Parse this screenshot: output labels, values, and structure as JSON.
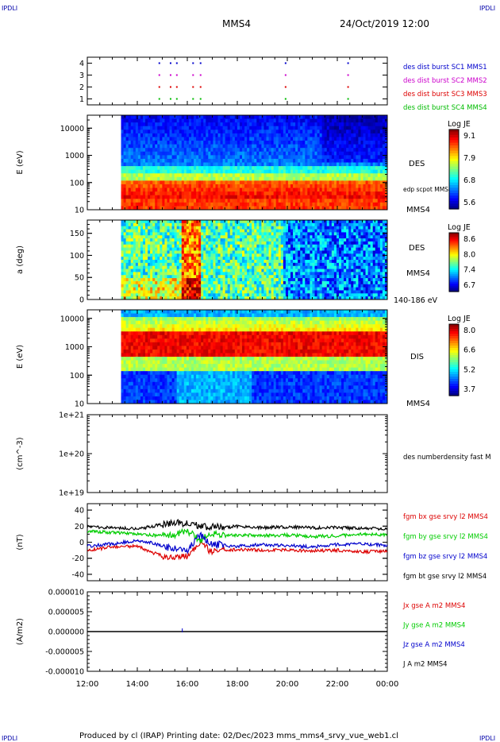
{
  "corners": {
    "top_left": "IPDLI",
    "top_right": "IPDLI",
    "bottom_left": "IPDLI",
    "bottom_right": "IPDLI"
  },
  "header": {
    "title": "MMS4",
    "date": "24/Oct/2019 12:00"
  },
  "footer": {
    "text": "Produced by cl (IRAP)   Printing date: 02/Dec/2023   mms_mms4_srvy_vue_web1.cl"
  },
  "colors": {
    "mms1": "#0000cc",
    "mms2": "#cc00cc",
    "mms3": "#dd0000",
    "mms4": "#00bb00",
    "black": "#000000"
  },
  "chart_data": [
    {
      "type": "scatter",
      "name": "burst availability",
      "ylim": [
        0.5,
        4.5
      ],
      "yticks": [
        "1",
        "2",
        "3",
        "4"
      ],
      "legend": [
        {
          "label": "des dist burst SC1 MMS1",
          "color": "#0000cc",
          "row": 4
        },
        {
          "label": "des dist burst SC2 MMS2",
          "color": "#cc00cc",
          "row": 3
        },
        {
          "label": "des dist burst SC3 MMS3",
          "color": "#dd0000",
          "row": 2
        },
        {
          "label": "des dist burst SC4 MMS4",
          "color": "#00bb00",
          "row": 1
        }
      ],
      "burst_times_h": [
        14.85,
        15.3,
        15.55,
        16.2,
        16.5,
        19.9,
        22.4
      ]
    },
    {
      "type": "heatmap",
      "name": "DES energy spectrogram",
      "ylabel": "E (eV)",
      "yscale": "log",
      "ylim": [
        10,
        30000
      ],
      "yticks": [
        "10",
        "100",
        "1000",
        "10000"
      ],
      "data_start_h": 13.35,
      "side_label": "DES",
      "side_note": "edp scpot MMS4",
      "probe": "MMS4",
      "colorbar": {
        "title": "Log JE",
        "ticks": [
          "9.1",
          "7.9",
          "6.8",
          "5.6"
        ]
      }
    },
    {
      "type": "heatmap",
      "name": "DES pitch angle",
      "ylabel": "a (deg)",
      "ylim": [
        0,
        180
      ],
      "yticks": [
        "0",
        "50",
        "100",
        "150"
      ],
      "data_start_h": 13.35,
      "side_label": "DES",
      "probe": "MMS4",
      "energy_range": "140-186 eV",
      "colorbar": {
        "title": "Log JE",
        "ticks": [
          "8.6",
          "8.0",
          "7.4",
          "6.7"
        ]
      }
    },
    {
      "type": "heatmap",
      "name": "DIS energy spectrogram",
      "ylabel": "E (eV)",
      "yscale": "log",
      "ylim": [
        10,
        20000
      ],
      "yticks": [
        "10",
        "100",
        "1000",
        "10000"
      ],
      "data_start_h": 13.35,
      "side_label": "DIS",
      "probe": "MMS4",
      "colorbar": {
        "title": "Log JE",
        "ticks": [
          "8.0",
          "6.6",
          "5.2",
          "3.7"
        ]
      }
    },
    {
      "type": "line",
      "name": "density",
      "ylabel": "(cm^-3)",
      "yscale": "log",
      "ylim": [
        1e+19,
        1e+21
      ],
      "yticks": [
        "1e+19",
        "1e+20",
        "1e+21"
      ],
      "legend": [
        {
          "label": "des numberdensity fast M",
          "color": "#000000"
        }
      ],
      "series": []
    },
    {
      "type": "line",
      "name": "magnetic field",
      "ylabel": "(nT)",
      "ylim": [
        -48,
        48
      ],
      "yticks": [
        "-40",
        "-20",
        "0",
        "20",
        "40"
      ],
      "legend": [
        {
          "label": "fgm bx gse srvy l2 MMS4",
          "color": "#dd0000"
        },
        {
          "label": "fgm by gse srvy l2 MMS4",
          "color": "#00cc00"
        },
        {
          "label": "fgm bz gse srvy l2 MMS4",
          "color": "#0000cc"
        },
        {
          "label": "fgm bt gse srvy l2 MMS4",
          "color": "#000000"
        }
      ],
      "series": [
        {
          "name": "bx",
          "t": [
            12,
            13,
            14,
            14.5,
            15,
            15.5,
            16,
            16.5,
            17,
            17.5,
            18,
            19,
            20,
            21,
            22,
            23,
            24
          ],
          "values": [
            -10,
            -6,
            -5,
            -12,
            -17,
            -19,
            -18,
            -2,
            -12,
            -10,
            -9,
            -10,
            -10,
            -11,
            -10,
            -12,
            -11
          ]
        },
        {
          "name": "by",
          "t": [
            12,
            13,
            14,
            14.5,
            15,
            15.5,
            16,
            16.5,
            17,
            17.5,
            18,
            19,
            20,
            21,
            22,
            23,
            24
          ],
          "values": [
            14,
            12,
            10,
            9,
            8,
            10,
            14,
            3,
            10,
            8,
            9,
            8,
            9,
            7,
            8,
            10,
            9
          ]
        },
        {
          "name": "bz",
          "t": [
            12,
            13,
            14,
            14.5,
            15,
            15.5,
            16,
            16.5,
            17,
            17.5,
            18,
            19,
            20,
            21,
            22,
            23,
            24
          ],
          "values": [
            -5,
            -2,
            2,
            0,
            -5,
            -8,
            -12,
            10,
            -2,
            -4,
            -5,
            -3,
            -4,
            -6,
            -3,
            -2,
            -4
          ]
        },
        {
          "name": "bt",
          "t": [
            12,
            13,
            14,
            14.5,
            15,
            15.5,
            16,
            16.5,
            17,
            17.5,
            18,
            19,
            20,
            21,
            22,
            23,
            24
          ],
          "values": [
            20,
            18,
            17,
            19,
            22,
            24,
            24,
            20,
            19,
            18,
            20,
            18,
            19,
            18,
            18,
            17,
            17
          ]
        }
      ]
    },
    {
      "type": "line",
      "name": "current density",
      "ylabel": "(A/m2)",
      "ylim": [
        -1e-05,
        1e-05
      ],
      "yticks": [
        "-0.000010",
        "-0.000005",
        "0.000000",
        "0.000005",
        "0.000010"
      ],
      "legend": [
        {
          "label": "Jx gse A m2 MMS4",
          "color": "#dd0000"
        },
        {
          "label": "Jy gse A m2 MMS4",
          "color": "#00cc00"
        },
        {
          "label": "Jz gse A m2 MMS4",
          "color": "#0000cc"
        },
        {
          "label": "J A m2 MMS4",
          "color": "#000000"
        }
      ],
      "series": [
        {
          "name": "J",
          "t": [
            12,
            24
          ],
          "values": [
            0,
            0
          ]
        }
      ]
    }
  ],
  "xaxis": {
    "ticks": [
      "12:00",
      "14:00",
      "16:00",
      "18:00",
      "20:00",
      "22:00",
      "00:00"
    ],
    "range_h": [
      12,
      24
    ]
  }
}
